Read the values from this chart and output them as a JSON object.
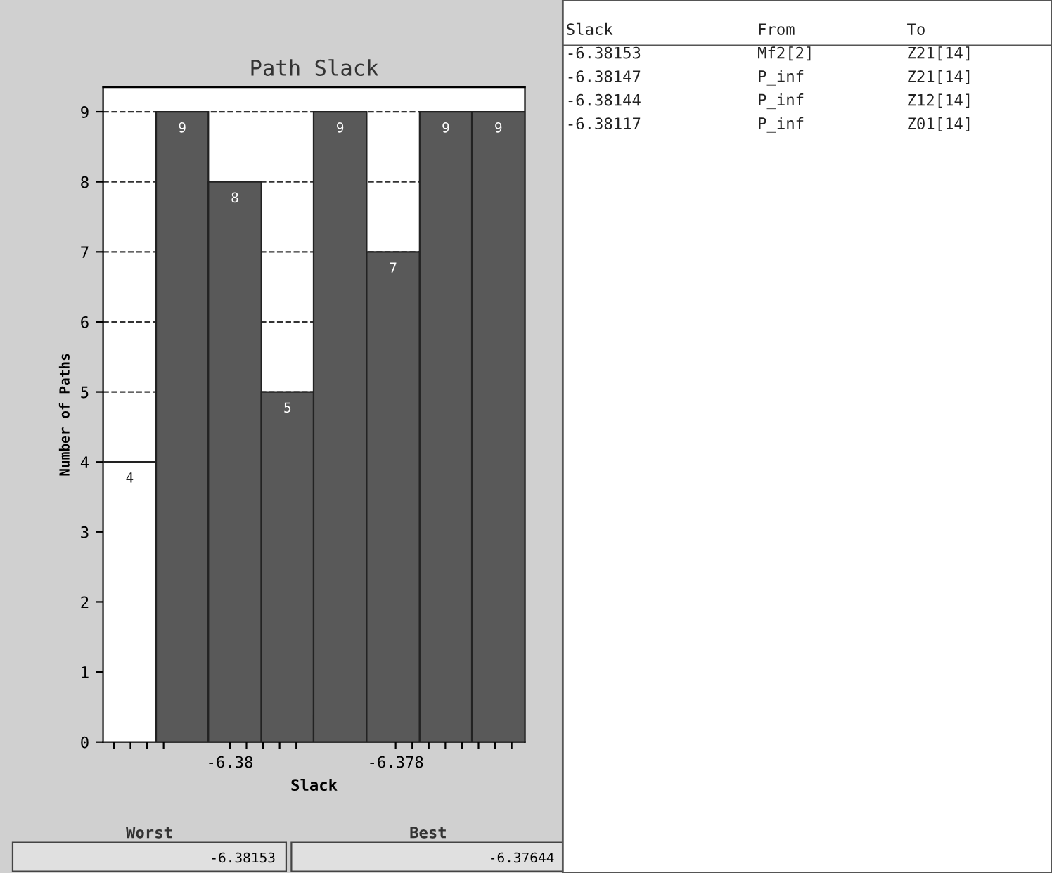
{
  "chart_data": {
    "type": "histogram",
    "title": "Path Slack",
    "xlabel": "Slack",
    "ylabel": "Number of Paths",
    "bins": [
      -6.38153,
      -6.38089,
      -6.38026,
      -6.37962,
      -6.37899,
      -6.37835,
      -6.37771,
      -6.37708,
      -6.37644
    ],
    "values": [
      4,
      9,
      8,
      5,
      9,
      7,
      9,
      9
    ],
    "colors": [
      "#ffffff",
      "#595959",
      "#595959",
      "#595959",
      "#595959",
      "#595959",
      "#595959",
      "#595959"
    ],
    "data_labels": true,
    "xlim": [
      -6.38153,
      -6.37644
    ],
    "xticks": [
      {
        "value": -6.3814,
        "label": null
      },
      {
        "value": -6.3812,
        "label": null
      },
      {
        "value": -6.381,
        "label": null
      },
      {
        "value": -6.3808,
        "label": null
      },
      -6.38,
      {
        "value": -6.3798,
        "label": null
      },
      {
        "value": -6.3796,
        "label": null
      },
      {
        "value": -6.3794,
        "label": null
      },
      {
        "value": -6.3792,
        "label": null
      },
      -6.378,
      {
        "value": -6.3778,
        "label": null
      },
      {
        "value": -6.3776,
        "label": null
      },
      {
        "value": -6.3774,
        "label": null
      },
      {
        "value": -6.3772,
        "label": null
      },
      {
        "value": -6.377,
        "label": null
      },
      {
        "value": -6.3768,
        "label": null
      },
      {
        "value": -6.3766,
        "label": null
      }
    ],
    "ylim": [
      0,
      9.35
    ],
    "yticks": [
      0,
      1,
      2,
      3,
      4,
      5,
      6,
      7,
      8,
      9
    ],
    "grid": "y",
    "line_style": "dashed",
    "annotations": [
      "Worst",
      "-6.38153",
      "Best",
      "-6.37644",
      "Slack",
      "From",
      "To",
      "-6.38153",
      "Mf2[2]",
      "Z21[14]",
      "-6.38147",
      "P_inf",
      "Z21[14]",
      "-6.38144",
      "P_inf",
      "Z12[14]",
      "-6.38117",
      "P_inf",
      "Z01[14]"
    ]
  }
}
